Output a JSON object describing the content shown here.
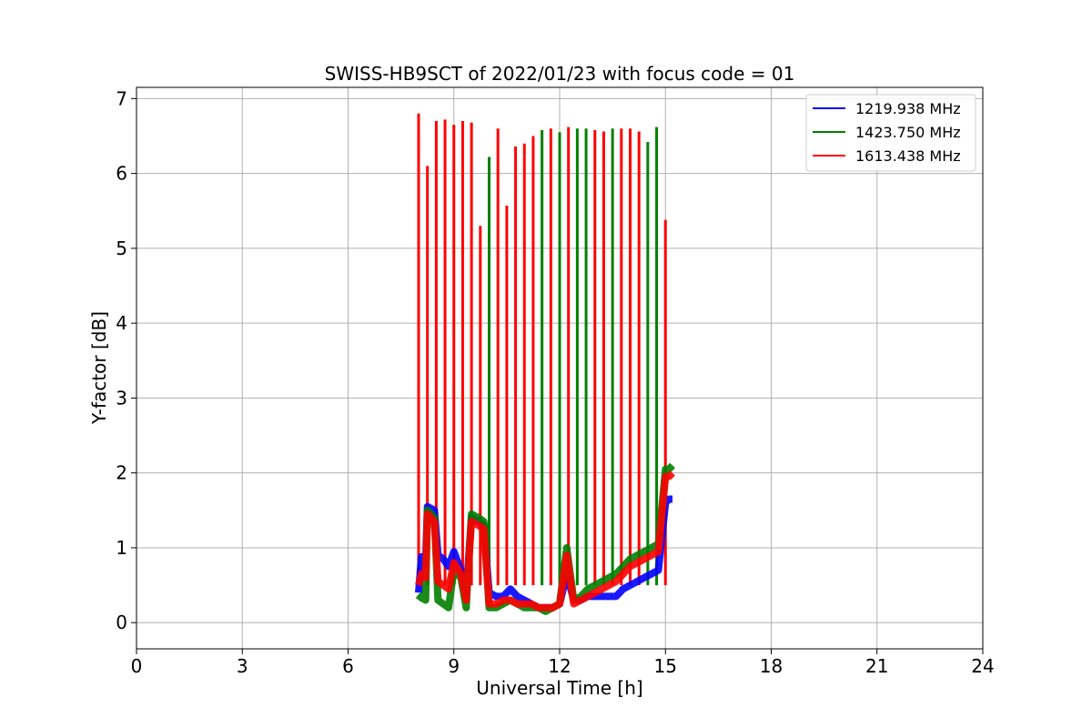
{
  "chart_data": {
    "type": "line",
    "title": "SWISS-HB9SCT of 2022/01/23 with focus code = 01",
    "xlabel": "Universal Time [h]",
    "ylabel": "Y-factor [dB]",
    "xlim": [
      0,
      24
    ],
    "ylim": [
      -0.35,
      7.15
    ],
    "xticks": [
      0,
      3,
      6,
      9,
      12,
      15,
      18,
      21,
      24
    ],
    "xtick_labels": [
      "0",
      "3",
      "6",
      "9",
      "12",
      "15",
      "18",
      "21",
      "24"
    ],
    "yticks": [
      0,
      1,
      2,
      3,
      4,
      5,
      6,
      7
    ],
    "ytick_labels": [
      "0",
      "1",
      "2",
      "3",
      "4",
      "5",
      "6",
      "7"
    ],
    "grid": true,
    "legend_position": "top-right",
    "series": [
      {
        "name": "1219.938 MHz",
        "color": "#0000ff",
        "x": [
          8.0,
          8.08,
          8.2,
          8.25,
          8.45,
          8.55,
          8.7,
          8.85,
          9.0,
          9.2,
          9.35,
          9.5,
          9.7,
          9.85,
          10.0,
          10.2,
          10.4,
          10.6,
          10.8,
          11.0,
          11.2,
          11.4,
          11.6,
          11.8,
          12.0,
          12.2,
          12.4,
          12.6,
          12.8,
          13.0,
          13.2,
          13.4,
          13.6,
          13.8,
          14.0,
          14.2,
          14.4,
          14.6,
          14.8,
          15.0,
          15.1,
          15.2
        ],
        "y": [
          0.4,
          0.88,
          0.8,
          1.55,
          1.5,
          0.9,
          0.85,
          0.75,
          0.95,
          0.7,
          0.4,
          1.4,
          1.35,
          1.3,
          0.4,
          0.35,
          0.35,
          0.45,
          0.35,
          0.3,
          0.25,
          0.2,
          0.2,
          0.2,
          0.25,
          0.65,
          0.3,
          0.3,
          0.35,
          0.35,
          0.35,
          0.35,
          0.35,
          0.45,
          0.5,
          0.55,
          0.6,
          0.65,
          0.7,
          1.6,
          1.65,
          1.65
        ]
      },
      {
        "name": "1423.750 MHz",
        "color": "#008000",
        "x": [
          8.0,
          8.08,
          8.2,
          8.25,
          8.45,
          8.55,
          8.7,
          8.85,
          9.0,
          9.2,
          9.35,
          9.5,
          9.7,
          9.85,
          10.0,
          10.2,
          10.4,
          10.6,
          10.8,
          11.0,
          11.2,
          11.4,
          11.6,
          11.8,
          12.0,
          12.2,
          12.4,
          12.6,
          12.8,
          13.0,
          13.2,
          13.4,
          13.6,
          13.8,
          14.0,
          14.2,
          14.4,
          14.6,
          14.8,
          15.0,
          15.1,
          15.2
        ],
        "y": [
          0.3,
          0.35,
          0.3,
          1.5,
          1.4,
          0.3,
          0.25,
          0.2,
          0.7,
          0.6,
          0.2,
          1.45,
          1.4,
          1.35,
          0.2,
          0.2,
          0.25,
          0.3,
          0.25,
          0.2,
          0.2,
          0.2,
          0.15,
          0.2,
          0.25,
          1.0,
          0.3,
          0.35,
          0.45,
          0.5,
          0.55,
          0.6,
          0.65,
          0.75,
          0.85,
          0.9,
          0.95,
          1.0,
          1.05,
          2.05,
          2.05,
          2.1
        ]
      },
      {
        "name": "1613.438 MHz",
        "color": "#ff0000",
        "x": [
          8.0,
          8.08,
          8.2,
          8.25,
          8.45,
          8.55,
          8.7,
          8.85,
          9.0,
          9.2,
          9.35,
          9.5,
          9.7,
          9.85,
          10.0,
          10.2,
          10.4,
          10.6,
          10.8,
          11.0,
          11.2,
          11.4,
          11.6,
          11.8,
          12.0,
          12.2,
          12.4,
          12.6,
          12.8,
          13.0,
          13.2,
          13.4,
          13.6,
          13.8,
          14.0,
          14.2,
          14.4,
          14.6,
          14.8,
          15.0,
          15.1,
          15.2
        ],
        "y": [
          0.5,
          0.65,
          0.6,
          1.45,
          1.35,
          0.55,
          0.5,
          0.45,
          0.8,
          0.65,
          0.3,
          1.35,
          1.3,
          1.25,
          0.25,
          0.25,
          0.3,
          0.3,
          0.25,
          0.25,
          0.25,
          0.2,
          0.2,
          0.2,
          0.25,
          0.9,
          0.25,
          0.3,
          0.35,
          0.4,
          0.45,
          0.5,
          0.55,
          0.65,
          0.75,
          0.8,
          0.85,
          0.9,
          0.95,
          1.95,
          1.95,
          2.0
        ]
      }
    ],
    "spikes": [
      {
        "x": 8.0,
        "y": 6.8,
        "series": 2
      },
      {
        "x": 8.25,
        "y": 6.1,
        "series": 2
      },
      {
        "x": 8.5,
        "y": 6.7,
        "series": 2
      },
      {
        "x": 8.75,
        "y": 6.72,
        "series": 2
      },
      {
        "x": 9.0,
        "y": 6.65,
        "series": 2
      },
      {
        "x": 9.25,
        "y": 6.7,
        "series": 2
      },
      {
        "x": 9.5,
        "y": 6.68,
        "series": 2
      },
      {
        "x": 9.75,
        "y": 5.3,
        "series": 2
      },
      {
        "x": 10.0,
        "y": 6.22,
        "series": 1
      },
      {
        "x": 10.25,
        "y": 6.6,
        "series": 2
      },
      {
        "x": 10.5,
        "y": 5.57,
        "series": 2
      },
      {
        "x": 10.75,
        "y": 6.36,
        "series": 2
      },
      {
        "x": 11.0,
        "y": 6.4,
        "series": 2
      },
      {
        "x": 11.25,
        "y": 6.5,
        "series": 2
      },
      {
        "x": 11.5,
        "y": 6.58,
        "series": 1
      },
      {
        "x": 11.75,
        "y": 6.6,
        "series": 2
      },
      {
        "x": 12.0,
        "y": 6.55,
        "series": 1
      },
      {
        "x": 12.25,
        "y": 6.62,
        "series": 2
      },
      {
        "x": 12.5,
        "y": 6.6,
        "series": 1
      },
      {
        "x": 12.75,
        "y": 6.6,
        "series": 1
      },
      {
        "x": 13.0,
        "y": 6.58,
        "series": 2
      },
      {
        "x": 13.25,
        "y": 6.56,
        "series": 2
      },
      {
        "x": 13.5,
        "y": 6.6,
        "series": 1
      },
      {
        "x": 13.75,
        "y": 6.6,
        "series": 2
      },
      {
        "x": 14.0,
        "y": 6.6,
        "series": 2
      },
      {
        "x": 14.25,
        "y": 6.56,
        "series": 2
      },
      {
        "x": 14.5,
        "y": 6.42,
        "series": 1
      },
      {
        "x": 14.75,
        "y": 6.62,
        "series": 1
      },
      {
        "x": 15.0,
        "y": 5.38,
        "series": 2
      }
    ]
  }
}
